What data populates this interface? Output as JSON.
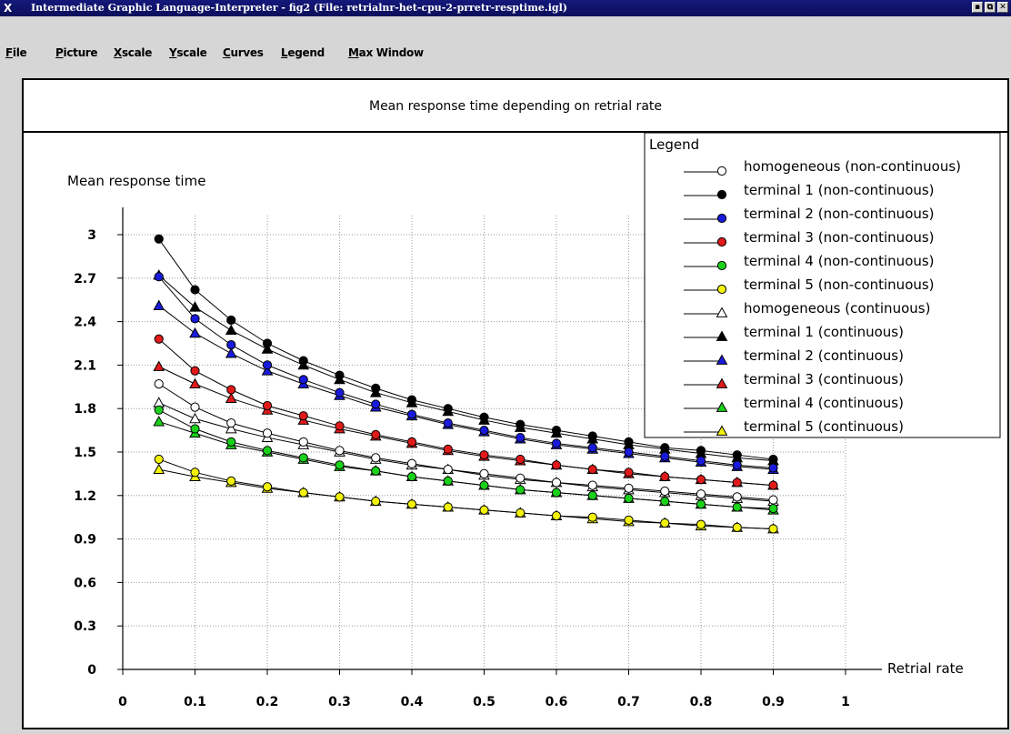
{
  "window": {
    "logo": "X",
    "title": "Intermediate Graphic Language-Interpreter - fig2 (File: retrialnr-het-cpu-2-prretr-resptime.igl)",
    "buttons": [
      "▪",
      "⧉",
      "✕"
    ]
  },
  "menu": {
    "file": "File",
    "picture": "Picture",
    "xscale": "Xscale",
    "yscale": "Yscale",
    "curves": "Curves",
    "legend": "Legend",
    "max_window": "Max Window"
  },
  "chart_data": {
    "type": "line",
    "title": "Mean response time depending on retrial rate",
    "xlabel": "Retrial rate",
    "ylabel": "Mean response time",
    "xlim": [
      0,
      1
    ],
    "ylim": [
      0,
      3.3
    ],
    "x_ticks": [
      "0",
      "0.1",
      "0.2",
      "0.3",
      "0.4",
      "0.5",
      "0.6",
      "0.7",
      "0.8",
      "0.9",
      "1"
    ],
    "y_ticks": [
      "0",
      "0.3",
      "0.6",
      "0.9",
      "1.2",
      "1.5",
      "1.8",
      "2.1",
      "2.4",
      "2.7",
      "3"
    ],
    "grid": true,
    "legend_title": "Legend",
    "legend_position": "top-right",
    "x": [
      0.05,
      0.1,
      0.15,
      0.2,
      0.25,
      0.3,
      0.35,
      0.4,
      0.45,
      0.5,
      0.55,
      0.6,
      0.65,
      0.7,
      0.75,
      0.8,
      0.85,
      0.9
    ],
    "series": [
      {
        "name": "homogeneous (non-continuous)",
        "marker": "circle",
        "color": "#ffffff",
        "values": [
          1.97,
          1.81,
          1.7,
          1.63,
          1.57,
          1.51,
          1.46,
          1.42,
          1.38,
          1.35,
          1.32,
          1.29,
          1.27,
          1.25,
          1.23,
          1.21,
          1.19,
          1.17
        ]
      },
      {
        "name": "terminal 1 (non-continuous)",
        "marker": "circle",
        "color": "#000000",
        "values": [
          2.97,
          2.62,
          2.41,
          2.25,
          2.13,
          2.03,
          1.94,
          1.86,
          1.8,
          1.74,
          1.69,
          1.65,
          1.61,
          1.57,
          1.53,
          1.51,
          1.48,
          1.45
        ]
      },
      {
        "name": "terminal 2 (non-continuous)",
        "marker": "circle",
        "color": "#1a1adc",
        "values": [
          2.71,
          2.42,
          2.24,
          2.1,
          2.0,
          1.91,
          1.83,
          1.76,
          1.7,
          1.65,
          1.6,
          1.56,
          1.53,
          1.5,
          1.47,
          1.44,
          1.41,
          1.39
        ]
      },
      {
        "name": "terminal 3 (non-continuous)",
        "marker": "circle",
        "color": "#e01a1a",
        "values": [
          2.28,
          2.06,
          1.93,
          1.82,
          1.75,
          1.68,
          1.62,
          1.57,
          1.52,
          1.48,
          1.45,
          1.41,
          1.38,
          1.36,
          1.33,
          1.31,
          1.29,
          1.27
        ]
      },
      {
        "name": "terminal 4 (non-continuous)",
        "marker": "circle",
        "color": "#1ad21a",
        "values": [
          1.79,
          1.66,
          1.57,
          1.51,
          1.46,
          1.41,
          1.37,
          1.33,
          1.3,
          1.27,
          1.24,
          1.22,
          1.2,
          1.18,
          1.16,
          1.14,
          1.12,
          1.11
        ]
      },
      {
        "name": "terminal 5 (non-continuous)",
        "marker": "circle",
        "color": "#f2f20a",
        "values": [
          1.45,
          1.36,
          1.3,
          1.26,
          1.22,
          1.19,
          1.16,
          1.14,
          1.12,
          1.1,
          1.08,
          1.06,
          1.05,
          1.03,
          1.01,
          1.0,
          0.98,
          0.97
        ]
      },
      {
        "name": "homogeneous (continuous)",
        "marker": "triangle",
        "color": "#ffffff",
        "values": [
          1.84,
          1.73,
          1.66,
          1.6,
          1.55,
          1.5,
          1.45,
          1.41,
          1.38,
          1.34,
          1.31,
          1.29,
          1.26,
          1.24,
          1.22,
          1.2,
          1.18,
          1.16
        ]
      },
      {
        "name": "terminal 1 (continuous)",
        "marker": "triangle",
        "color": "#000000",
        "values": [
          2.72,
          2.5,
          2.34,
          2.21,
          2.1,
          2.0,
          1.91,
          1.84,
          1.78,
          1.72,
          1.67,
          1.63,
          1.59,
          1.55,
          1.52,
          1.49,
          1.46,
          1.44
        ]
      },
      {
        "name": "terminal 2 (continuous)",
        "marker": "triangle",
        "color": "#1a1adc",
        "values": [
          2.51,
          2.32,
          2.18,
          2.06,
          1.97,
          1.89,
          1.81,
          1.75,
          1.69,
          1.64,
          1.59,
          1.55,
          1.52,
          1.49,
          1.46,
          1.43,
          1.4,
          1.38
        ]
      },
      {
        "name": "terminal 3 (continuous)",
        "marker": "triangle",
        "color": "#e01a1a",
        "values": [
          2.09,
          1.97,
          1.87,
          1.79,
          1.72,
          1.66,
          1.61,
          1.56,
          1.51,
          1.47,
          1.44,
          1.41,
          1.38,
          1.35,
          1.33,
          1.31,
          1.29,
          1.27
        ]
      },
      {
        "name": "terminal 4 (continuous)",
        "marker": "triangle",
        "color": "#1ad21a",
        "values": [
          1.71,
          1.63,
          1.55,
          1.5,
          1.45,
          1.4,
          1.37,
          1.33,
          1.3,
          1.27,
          1.24,
          1.22,
          1.2,
          1.18,
          1.16,
          1.14,
          1.12,
          1.1
        ]
      },
      {
        "name": "terminal 5 (continuous)",
        "marker": "triangle",
        "color": "#f2f20a",
        "values": [
          1.38,
          1.33,
          1.29,
          1.25,
          1.22,
          1.19,
          1.16,
          1.14,
          1.12,
          1.1,
          1.08,
          1.06,
          1.04,
          1.02,
          1.01,
          0.99,
          0.98,
          0.97
        ]
      }
    ]
  }
}
